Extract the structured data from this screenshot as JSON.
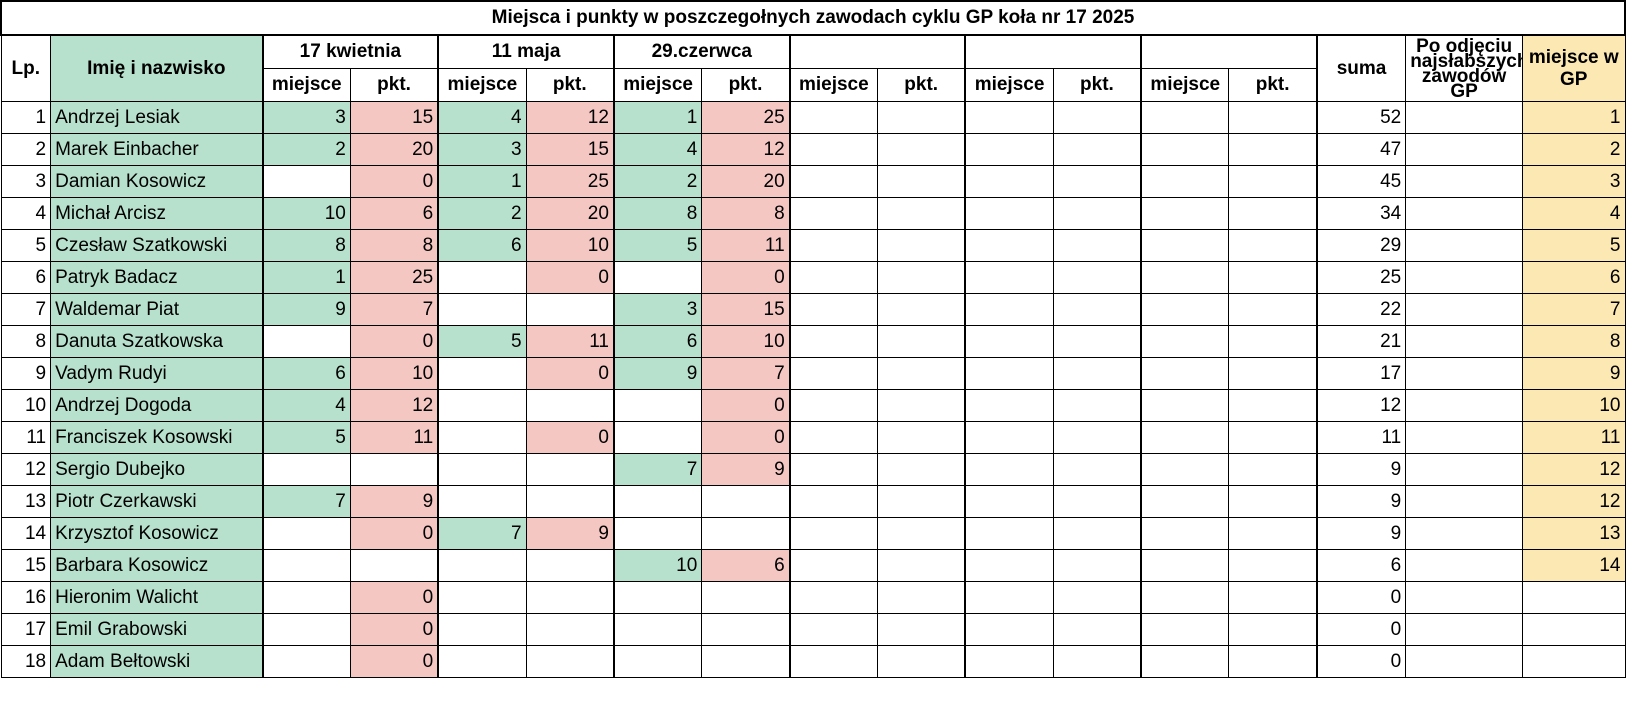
{
  "title": "Miejsca i punkty w poszczegołnych zawodach cyklu GP koła nr 17 2025",
  "headers": {
    "lp": "Lp.",
    "name": "Imię i nazwisko",
    "events": [
      "17 kwietnia",
      "11 maja",
      "29.czerwca",
      "",
      "",
      ""
    ],
    "place": "miejsce",
    "points": "pkt.",
    "sum": "suma",
    "after_drop": "Po odjęciu najsłabszych zawodów GP",
    "gp_place": "miejsce w GP"
  },
  "rows": [
    {
      "lp": "1",
      "name": "Andrzej Lesiak",
      "cells": [
        "3",
        "15",
        "4",
        "12",
        "1",
        "25",
        "",
        "",
        "",
        "",
        "",
        ""
      ],
      "sum": "52",
      "after": "",
      "gp": "1"
    },
    {
      "lp": "2",
      "name": "Marek Einbacher",
      "cells": [
        "2",
        "20",
        "3",
        "15",
        "4",
        "12",
        "",
        "",
        "",
        "",
        "",
        ""
      ],
      "sum": "47",
      "after": "",
      "gp": "2"
    },
    {
      "lp": "3",
      "name": "Damian Kosowicz",
      "cells": [
        "",
        "0",
        "1",
        "25",
        "2",
        "20",
        "",
        "",
        "",
        "",
        "",
        ""
      ],
      "sum": "45",
      "after": "",
      "gp": "3"
    },
    {
      "lp": "4",
      "name": "Michał Arcisz",
      "cells": [
        "10",
        "6",
        "2",
        "20",
        "8",
        "8",
        "",
        "",
        "",
        "",
        "",
        ""
      ],
      "sum": "34",
      "after": "",
      "gp": "4"
    },
    {
      "lp": "5",
      "name": "Czesław Szatkowski",
      "cells": [
        "8",
        "8",
        "6",
        "10",
        "5",
        "11",
        "",
        "",
        "",
        "",
        "",
        ""
      ],
      "sum": "29",
      "after": "",
      "gp": "5"
    },
    {
      "lp": "6",
      "name": "Patryk Badacz",
      "cells": [
        "1",
        "25",
        "",
        "0",
        "",
        "0",
        "",
        "",
        "",
        "",
        "",
        ""
      ],
      "sum": "25",
      "after": "",
      "gp": "6"
    },
    {
      "lp": "7",
      "name": "Waldemar Piat",
      "cells": [
        "9",
        "7",
        "",
        "",
        "3",
        "15",
        "",
        "",
        "",
        "",
        "",
        ""
      ],
      "sum": "22",
      "after": "",
      "gp": "7"
    },
    {
      "lp": "8",
      "name": "Danuta Szatkowska",
      "cells": [
        "",
        "0",
        "5",
        "11",
        "6",
        "10",
        "",
        "",
        "",
        "",
        "",
        ""
      ],
      "sum": "21",
      "after": "",
      "gp": "8"
    },
    {
      "lp": "9",
      "name": "Vadym Rudyi",
      "cells": [
        "6",
        "10",
        "",
        "0",
        "9",
        "7",
        "",
        "",
        "",
        "",
        "",
        ""
      ],
      "sum": "17",
      "after": "",
      "gp": "9"
    },
    {
      "lp": "10",
      "name": "Andrzej Dogoda",
      "cells": [
        "4",
        "12",
        "",
        "",
        "",
        "0",
        "",
        "",
        "",
        "",
        "",
        ""
      ],
      "sum": "12",
      "after": "",
      "gp": "10"
    },
    {
      "lp": "11",
      "name": "Franciszek Kosowski",
      "cells": [
        "5",
        "11",
        "",
        "0",
        "",
        "0",
        "",
        "",
        "",
        "",
        "",
        ""
      ],
      "sum": "11",
      "after": "",
      "gp": "11"
    },
    {
      "lp": "12",
      "name": "Sergio Dubejko",
      "cells": [
        "",
        "",
        "",
        "",
        "7",
        "9",
        "",
        "",
        "",
        "",
        "",
        ""
      ],
      "sum": "9",
      "after": "",
      "gp": "12"
    },
    {
      "lp": "13",
      "name": "Piotr Czerkawski",
      "cells": [
        "7",
        "9",
        "",
        "",
        "",
        "",
        "",
        "",
        "",
        "",
        "",
        ""
      ],
      "sum": "9",
      "after": "",
      "gp": "12"
    },
    {
      "lp": "14",
      "name": "Krzysztof Kosowicz",
      "cells": [
        "",
        "0",
        "7",
        "9",
        "",
        "",
        "",
        "",
        "",
        "",
        "",
        ""
      ],
      "sum": "9",
      "after": "",
      "gp": "13"
    },
    {
      "lp": "15",
      "name": "Barbara Kosowicz",
      "cells": [
        "",
        "",
        "",
        "",
        "10",
        "6",
        "",
        "",
        "",
        "",
        "",
        ""
      ],
      "sum": "6",
      "after": "",
      "gp": "14"
    },
    {
      "lp": "16",
      "name": "Hieronim Walicht",
      "cells": [
        "",
        "0",
        "",
        "",
        "",
        "",
        "",
        "",
        "",
        "",
        "",
        ""
      ],
      "sum": "0",
      "after": "",
      "gp": ""
    },
    {
      "lp": "17",
      "name": "Emil Grabowski",
      "cells": [
        "",
        "0",
        "",
        "",
        "",
        "",
        "",
        "",
        "",
        "",
        "",
        ""
      ],
      "sum": "0",
      "after": "",
      "gp": ""
    },
    {
      "lp": "18",
      "name": "Adam Bełtowski",
      "cells": [
        "",
        "0",
        "",
        "",
        "",
        "",
        "",
        "",
        "",
        "",
        "",
        ""
      ],
      "sum": "0",
      "after": "",
      "gp": ""
    }
  ],
  "fills": {
    "1": [
      "g",
      "p",
      "g",
      "p",
      "g",
      "p",
      "",
      "",
      "",
      "",
      "",
      ""
    ],
    "2": [
      "g",
      "p",
      "g",
      "p",
      "g",
      "p",
      "",
      "",
      "",
      "",
      "",
      ""
    ],
    "3": [
      "",
      "p",
      "g",
      "p",
      "g",
      "p",
      "",
      "",
      "",
      "",
      "",
      ""
    ],
    "4": [
      "g",
      "p",
      "g",
      "p",
      "g",
      "p",
      "",
      "",
      "",
      "",
      "",
      ""
    ],
    "5": [
      "g",
      "p",
      "g",
      "p",
      "g",
      "p",
      "",
      "",
      "",
      "",
      "",
      ""
    ],
    "6": [
      "g",
      "p",
      "",
      "p",
      "",
      "p",
      "",
      "",
      "",
      "",
      "",
      ""
    ],
    "7": [
      "g",
      "p",
      "",
      "",
      "g",
      "p",
      "",
      "",
      "",
      "",
      "",
      ""
    ],
    "8": [
      "",
      "p",
      "g",
      "p",
      "g",
      "p",
      "",
      "",
      "",
      "",
      "",
      ""
    ],
    "9": [
      "g",
      "p",
      "",
      "p",
      "g",
      "p",
      "",
      "",
      "",
      "",
      "",
      ""
    ],
    "10": [
      "g",
      "p",
      "",
      "",
      "",
      "p",
      "",
      "",
      "",
      "",
      "",
      ""
    ],
    "11": [
      "g",
      "p",
      "",
      "p",
      "",
      "p",
      "",
      "",
      "",
      "",
      "",
      ""
    ],
    "12": [
      "",
      "",
      "",
      "",
      "g",
      "p",
      "",
      "",
      "",
      "",
      "",
      ""
    ],
    "13": [
      "g",
      "p",
      "",
      "",
      "",
      "",
      "",
      "",
      "",
      "",
      "",
      ""
    ],
    "14": [
      "",
      "p",
      "g",
      "p",
      "",
      "",
      "",
      "",
      "",
      "",
      "",
      ""
    ],
    "15": [
      "",
      "",
      "",
      "",
      "g",
      "p",
      "",
      "",
      "",
      "",
      "",
      ""
    ],
    "16": [
      "",
      "p",
      "",
      "",
      "",
      "",
      "",
      "",
      "",
      "",
      "",
      ""
    ],
    "17": [
      "",
      "p",
      "",
      "",
      "",
      "",
      "",
      "",
      "",
      "",
      "",
      ""
    ],
    "18": [
      "",
      "p",
      "",
      "",
      "",
      "",
      "",
      "",
      "",
      "",
      "",
      ""
    ]
  },
  "colors": {
    "green": "#b7e1cd",
    "pink": "#f4c7c3",
    "yellow": "#fce8b2"
  }
}
